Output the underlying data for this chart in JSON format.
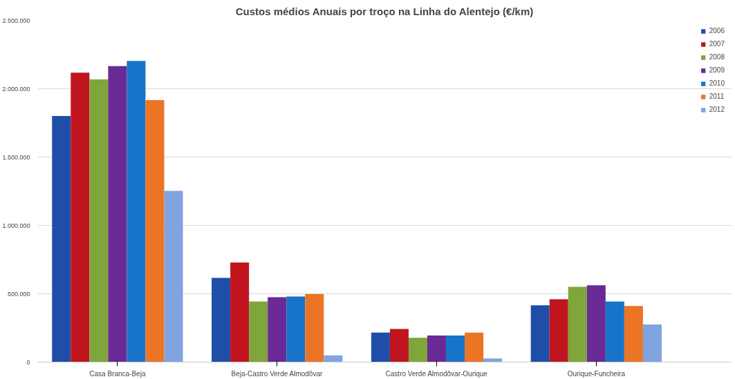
{
  "chart_data": {
    "type": "bar",
    "title": "Custos médios Anuais por troço na Linha do Alentejo (€/km)",
    "categories": [
      "Casa Branca-Beja",
      "Beja-Castro Verde Almodôvar",
      "Castro Verde Almodôvar-Ourique",
      "Ourique-Funcheira"
    ],
    "series": [
      {
        "name": "2006",
        "color": "#1f4ea8",
        "values": [
          1800000,
          616000,
          216000,
          416000
        ]
      },
      {
        "name": "2007",
        "color": "#c0141e",
        "values": [
          2117000,
          729000,
          243000,
          459000
        ]
      },
      {
        "name": "2008",
        "color": "#7ea63a",
        "values": [
          2068000,
          443000,
          178000,
          551000
        ]
      },
      {
        "name": "2009",
        "color": "#6a2a96",
        "values": [
          2165000,
          475000,
          194000,
          562000
        ]
      },
      {
        "name": "2010",
        "color": "#1874c8",
        "values": [
          2203000,
          480000,
          194000,
          443000
        ]
      },
      {
        "name": "2011",
        "color": "#ec7425",
        "values": [
          1917000,
          497000,
          216000,
          410000
        ]
      },
      {
        "name": "2012",
        "color": "#7fa4e0",
        "values": [
          1253000,
          49000,
          27000,
          275000
        ]
      }
    ],
    "ylim": [
      0,
      2500000
    ],
    "yticks": [
      0,
      {
        "value": 500000,
        "label": "500.000"
      },
      {
        "value": 1000000,
        "label": "1.000.000"
      },
      {
        "value": 1500000,
        "label": "1.500.000"
      },
      {
        "value": 2000000,
        "label": "2.000.000"
      },
      {
        "value": 2500000,
        "label": "2.500.000"
      }
    ],
    "grid": "y",
    "legend": "top right"
  }
}
